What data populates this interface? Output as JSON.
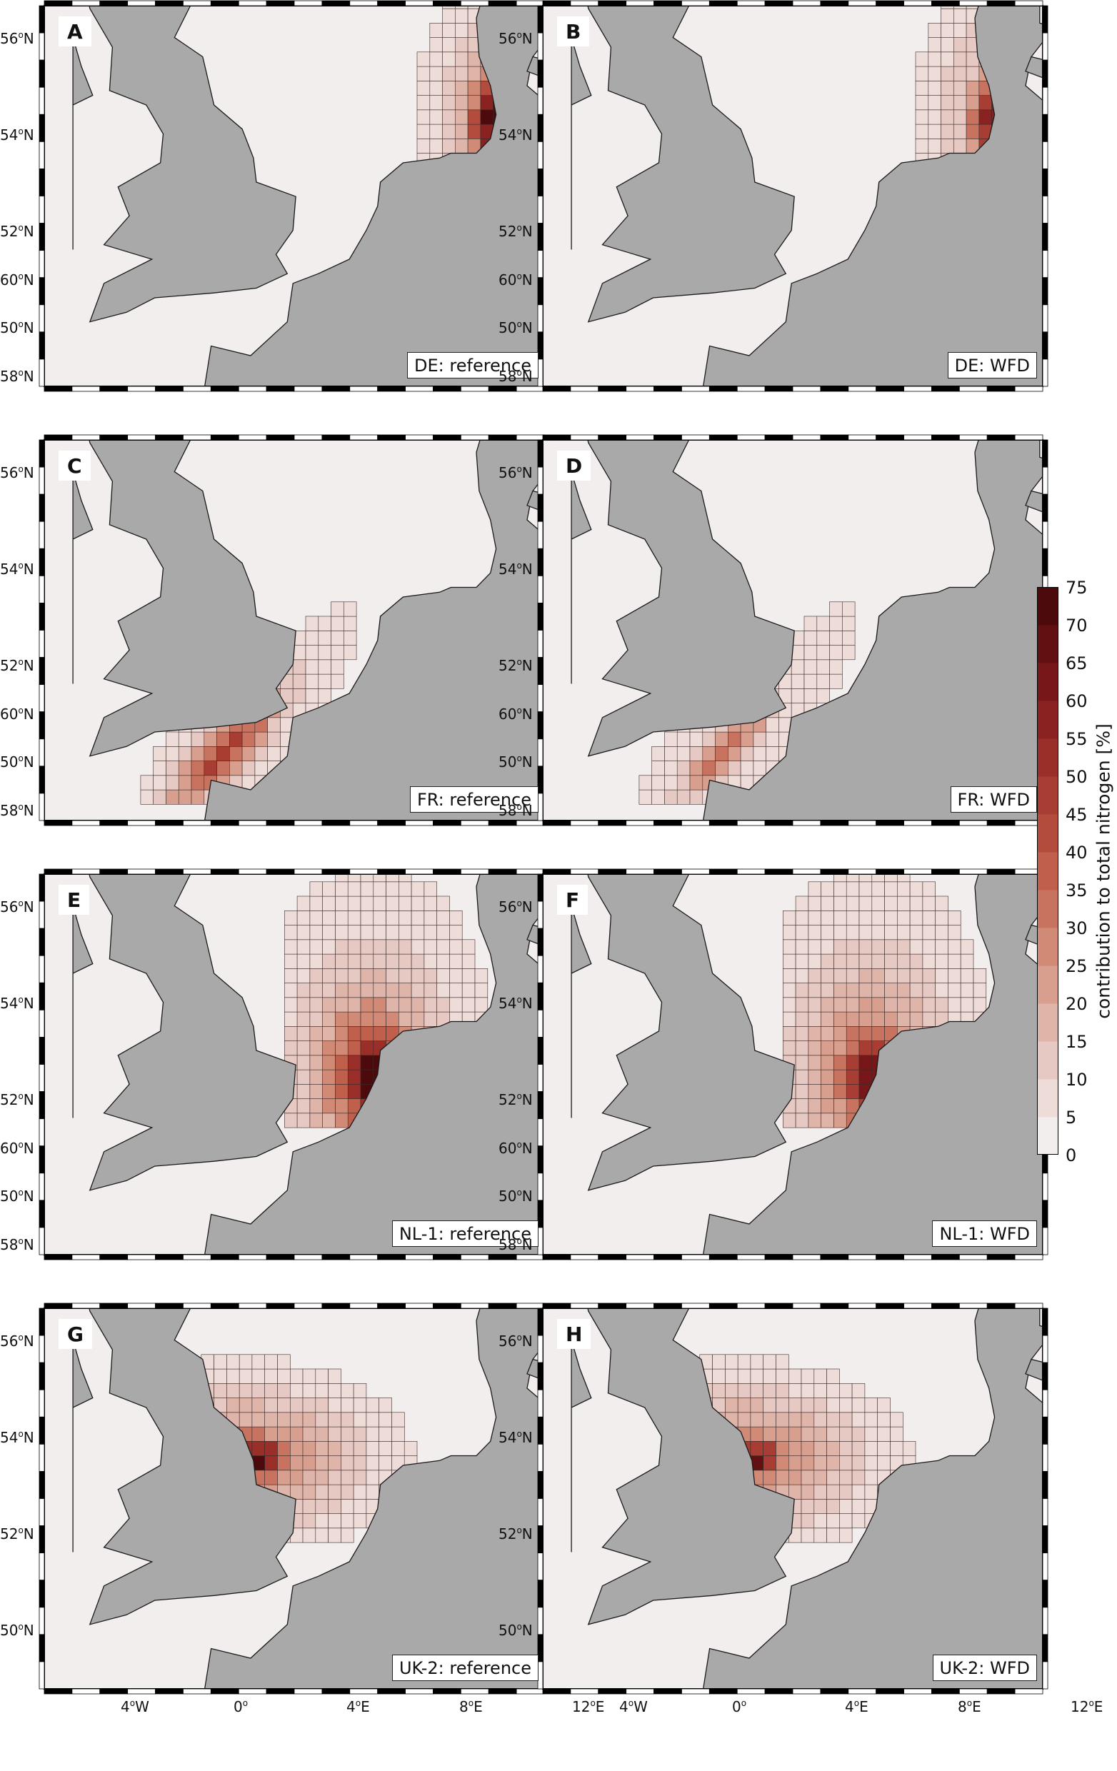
{
  "panels": [
    {
      "letter": "A",
      "caption": "DE: reference",
      "plume": "DE",
      "strength": 1.0
    },
    {
      "letter": "B",
      "caption": "DE: WFD",
      "plume": "DE",
      "strength": 0.8
    },
    {
      "letter": "C",
      "caption": "FR: reference",
      "plume": "FR",
      "strength": 1.0
    },
    {
      "letter": "D",
      "caption": "FR: WFD",
      "plume": "FR",
      "strength": 0.62
    },
    {
      "letter": "E",
      "caption": "NL-1: reference",
      "plume": "NL",
      "strength": 1.0
    },
    {
      "letter": "F",
      "caption": "NL-1: WFD",
      "plume": "NL",
      "strength": 0.88
    },
    {
      "letter": "G",
      "caption": "UK-2: reference",
      "plume": "UK",
      "strength": 1.0
    },
    {
      "letter": "H",
      "caption": "UK-2: WFD",
      "plume": "UK",
      "strength": 0.9
    }
  ],
  "lat_ticks": [
    {
      "deg": "60",
      "hemi": "N"
    },
    {
      "deg": "58",
      "hemi": "N"
    },
    {
      "deg": "56",
      "hemi": "N"
    },
    {
      "deg": "54",
      "hemi": "N"
    },
    {
      "deg": "52",
      "hemi": "N"
    },
    {
      "deg": "50",
      "hemi": "N"
    }
  ],
  "lon_ticks": [
    {
      "deg": "4",
      "hemi": "W"
    },
    {
      "deg": "0",
      "hemi": ""
    },
    {
      "deg": "4",
      "hemi": "E"
    },
    {
      "deg": "8",
      "hemi": "E"
    },
    {
      "deg": "12",
      "hemi": "E"
    }
  ],
  "colorbar": {
    "label": "contribution to total nitrogen [%]",
    "ticks": [
      "75",
      "70",
      "65",
      "60",
      "55",
      "50",
      "45",
      "40",
      "35",
      "30",
      "25",
      "20",
      "15",
      "10",
      "5",
      "0"
    ],
    "colors": [
      "#f3eeee",
      "#eedcd9",
      "#e6c9c3",
      "#dfb4a9",
      "#d89f8e",
      "#d08a76",
      "#c8735f",
      "#bf5f4c",
      "#b44c3d",
      "#a83d33",
      "#9a2f2a",
      "#8a2222",
      "#78171a",
      "#621012",
      "#4d0a0c"
    ]
  },
  "colors": {
    "land": "#a9a9a9",
    "sea": "#f3eeee",
    "coast": "#1a1a1a",
    "grid": "#2a2a2a"
  }
}
